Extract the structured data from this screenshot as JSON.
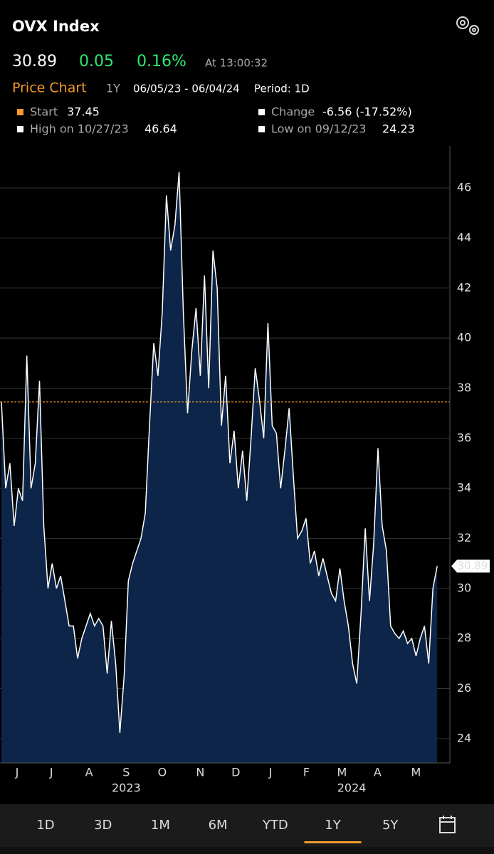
{
  "header": {
    "title": "OVX Index",
    "last": "30.89",
    "change": "0.05",
    "change_pct": "0.16%",
    "time": "At 13:00:32",
    "chart_label": "Price Chart",
    "range": "1Y",
    "dates": "06/05/23 - 06/04/24",
    "period": "Period: 1D"
  },
  "stats": {
    "start": {
      "label": "Start",
      "value": 37.45
    },
    "change": {
      "label": "Change",
      "value": "-6.56 (-17.52%)"
    },
    "high": {
      "label": "High on 10/27/23",
      "value": 46.64
    },
    "low": {
      "label": "Low on 09/12/23",
      "value": 24.23
    }
  },
  "chart_data": {
    "type": "area",
    "series": [
      {
        "name": "OVX Index",
        "color": "#ffffff",
        "fill": "#0c2548",
        "values": [
          37.45,
          34,
          35,
          32.5,
          34,
          33.5,
          39.3,
          34,
          35,
          38.3,
          32.5,
          30,
          31,
          30,
          30.5,
          29.5,
          28.5,
          28.5,
          27.2,
          28,
          28.5,
          29,
          28.5,
          28.8,
          28.5,
          26.6,
          28.7,
          27,
          24.23,
          26.5,
          30.3,
          31,
          31.5,
          32,
          33,
          36.5,
          39.8,
          38.5,
          41,
          45.7,
          43.5,
          44.5,
          46.64,
          41,
          37,
          39.5,
          41.2,
          38.5,
          42.5,
          38,
          43.5,
          42,
          36.5,
          38.5,
          35,
          36.3,
          34,
          35.5,
          33.5,
          36,
          38.8,
          37.5,
          36,
          40.6,
          36.5,
          36.2,
          34,
          35.5,
          37.2,
          34.5,
          32,
          32.3,
          32.8,
          31,
          31.5,
          30.5,
          31.2,
          30.5,
          29.8,
          29.5,
          30.8,
          29.5,
          28.5,
          27,
          26.2,
          29,
          32.4,
          29.5,
          31.8,
          35.6,
          32.5,
          31.5,
          28.5,
          28.2,
          28,
          28.3,
          27.8,
          28,
          27.3,
          28,
          28.5,
          27,
          30,
          30.89
        ]
      }
    ],
    "xlim": [
      -0.34,
      106
    ],
    "xticks": [
      {
        "value": 3.7,
        "label": "J"
      },
      {
        "value": 11.8,
        "label": "J"
      },
      {
        "value": 20.7,
        "label": "A"
      },
      {
        "value": 29.5,
        "label": "S"
      },
      {
        "value": 38.0,
        "label": "O"
      },
      {
        "value": 47.0,
        "label": "N"
      },
      {
        "value": 55.4,
        "label": "D"
      },
      {
        "value": 63.6,
        "label": "J"
      },
      {
        "value": 72.1,
        "label": "F"
      },
      {
        "value": 80.5,
        "label": "M"
      },
      {
        "value": 88.9,
        "label": "A"
      },
      {
        "value": 98.0,
        "label": "M"
      }
    ],
    "year_ticks": [
      {
        "value": 29.5,
        "label": "2023"
      },
      {
        "value": 82.8,
        "label": "2024"
      }
    ],
    "ylim": [
      23.03,
      47.68
    ],
    "yticks": [
      24,
      26,
      28,
      30,
      32,
      34,
      36,
      38,
      40,
      42,
      44,
      46
    ],
    "grid": true,
    "reference_color": "#f39a2b"
  },
  "tabs": [
    "1D",
    "3D",
    "1M",
    "6M",
    "YTD",
    "1Y",
    "5Y"
  ],
  "selected_tab": 5
}
